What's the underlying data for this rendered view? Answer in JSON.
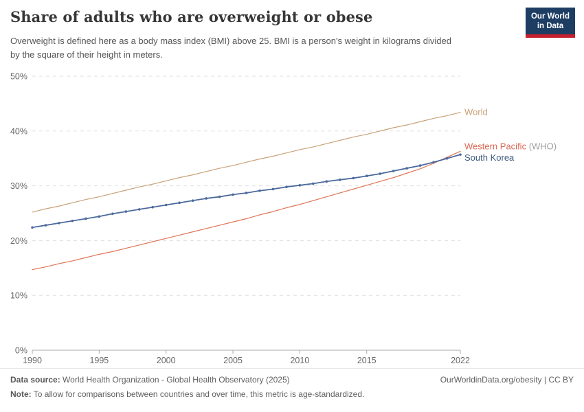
{
  "header": {
    "logo": {
      "line1": "Our World",
      "line2": "in Data",
      "bg": "#1d3d63",
      "accent": "#c5202e"
    }
  },
  "chart_data": {
    "type": "line",
    "title": "Share of adults who are overweight or obese",
    "subtitle_lines": [
      "Overweight is defined here as a body mass index (BMI) above 25. BMI is a person's weight in kilograms divided",
      "by the square of their height in meters."
    ],
    "x": [
      1990,
      1991,
      1992,
      1993,
      1994,
      1995,
      1996,
      1997,
      1998,
      1999,
      2000,
      2001,
      2002,
      2003,
      2004,
      2005,
      2006,
      2007,
      2008,
      2009,
      2010,
      2011,
      2012,
      2013,
      2014,
      2015,
      2016,
      2017,
      2018,
      2019,
      2020,
      2021,
      2022
    ],
    "series": [
      {
        "name": "World",
        "label": "World",
        "label_suffix": "",
        "color": "#C9A178",
        "label_color": "#C9A178",
        "width": 1.2,
        "markers": false,
        "label_offset": 4,
        "values": [
          25.2,
          25.8,
          26.3,
          26.9,
          27.5,
          28.0,
          28.6,
          29.2,
          29.8,
          30.3,
          30.9,
          31.5,
          32.0,
          32.6,
          33.2,
          33.7,
          34.3,
          34.9,
          35.4,
          36.0,
          36.6,
          37.1,
          37.7,
          38.3,
          38.9,
          39.4,
          40.0,
          40.6,
          41.1,
          41.7,
          42.3,
          42.8,
          43.4
        ]
      },
      {
        "name": "Western Pacific (WHO)",
        "label": "Western Pacific",
        "label_suffix": " (WHO)",
        "color": "#DE7456",
        "label_color": "#D96A55",
        "width": 1.2,
        "markers": false,
        "label_offset": -3,
        "values": [
          14.7,
          15.2,
          15.8,
          16.3,
          16.9,
          17.5,
          18.0,
          18.6,
          19.2,
          19.8,
          20.4,
          21.0,
          21.6,
          22.2,
          22.8,
          23.4,
          24.0,
          24.7,
          25.3,
          26.0,
          26.6,
          27.3,
          28.0,
          28.7,
          29.4,
          30.1,
          30.8,
          31.5,
          32.3,
          33.1,
          34.1,
          35.2,
          36.3
        ]
      },
      {
        "name": "South Korea",
        "label": "South Korea",
        "label_suffix": "",
        "color": "#4C6A9C",
        "label_color": "#3D5A80",
        "width": 1.8,
        "markers": true,
        "label_offset": 9,
        "values": [
          22.4,
          22.8,
          23.2,
          23.6,
          24.0,
          24.4,
          24.9,
          25.3,
          25.7,
          26.1,
          26.5,
          26.9,
          27.3,
          27.7,
          28.0,
          28.4,
          28.7,
          29.1,
          29.4,
          29.8,
          30.1,
          30.4,
          30.8,
          31.1,
          31.4,
          31.8,
          32.2,
          32.7,
          33.2,
          33.7,
          34.3,
          35.0,
          35.7
        ]
      }
    ],
    "ylim": [
      0,
      50
    ],
    "yticks": [
      0,
      10,
      20,
      30,
      40,
      50
    ],
    "ytick_suffix": "%",
    "xticks": [
      1990,
      1995,
      2000,
      2005,
      2010,
      2015,
      2022
    ],
    "grid": "horizontal-dashed",
    "legend_position": "right-end-labels",
    "suffix_color": "#9E9E9E",
    "grid_color": "#DDDDDD",
    "axis_color": "#A8A8A8",
    "tick_label_color": "#666666"
  },
  "footer": {
    "data_source_label": "Data source:",
    "data_source": " World Health Organization - Global Health Observatory (2025)",
    "credit": "OurWorldinData.org/obesity | CC BY",
    "note_label": "Note:",
    "note": " To allow for comparisons between countries and over time, this metric is age-standardized."
  }
}
